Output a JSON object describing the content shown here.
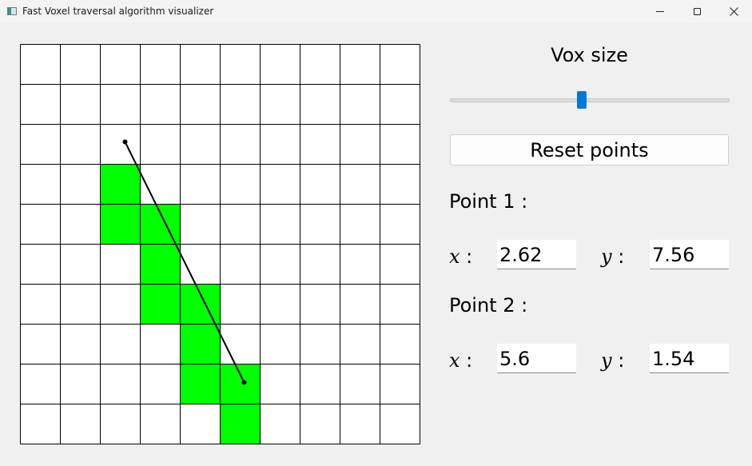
{
  "window": {
    "title": "Fast Voxel traversal algorithm visualizer",
    "icons": {
      "app": "app-icon",
      "minimize": "minimize-icon",
      "maximize": "maximize-icon",
      "close": "close-icon"
    }
  },
  "grid": {
    "cells": 10,
    "line_color": "#000000",
    "fill_color": "#00ff00",
    "segment_color": "#000000",
    "highlighted_cells": [
      [
        2,
        6
      ],
      [
        2,
        5
      ],
      [
        3,
        5
      ],
      [
        3,
        4
      ],
      [
        3,
        3
      ],
      [
        4,
        3
      ],
      [
        4,
        2
      ],
      [
        4,
        1
      ],
      [
        5,
        1
      ],
      [
        5,
        0
      ]
    ]
  },
  "controls": {
    "vox_size_label": "Vox size",
    "vox_size_slider": {
      "value_fraction": 0.47,
      "accent": "#0078d7"
    },
    "reset_label": "Reset points"
  },
  "point1": {
    "heading": "Point 1 :",
    "x_label": "x",
    "y_label": "y",
    "colon": " :",
    "x": "2.62",
    "y": "7.56"
  },
  "point2": {
    "heading": "Point 2 :",
    "x_label": "x",
    "y_label": "y",
    "colon": " :",
    "x": "5.6",
    "y": "1.54"
  }
}
